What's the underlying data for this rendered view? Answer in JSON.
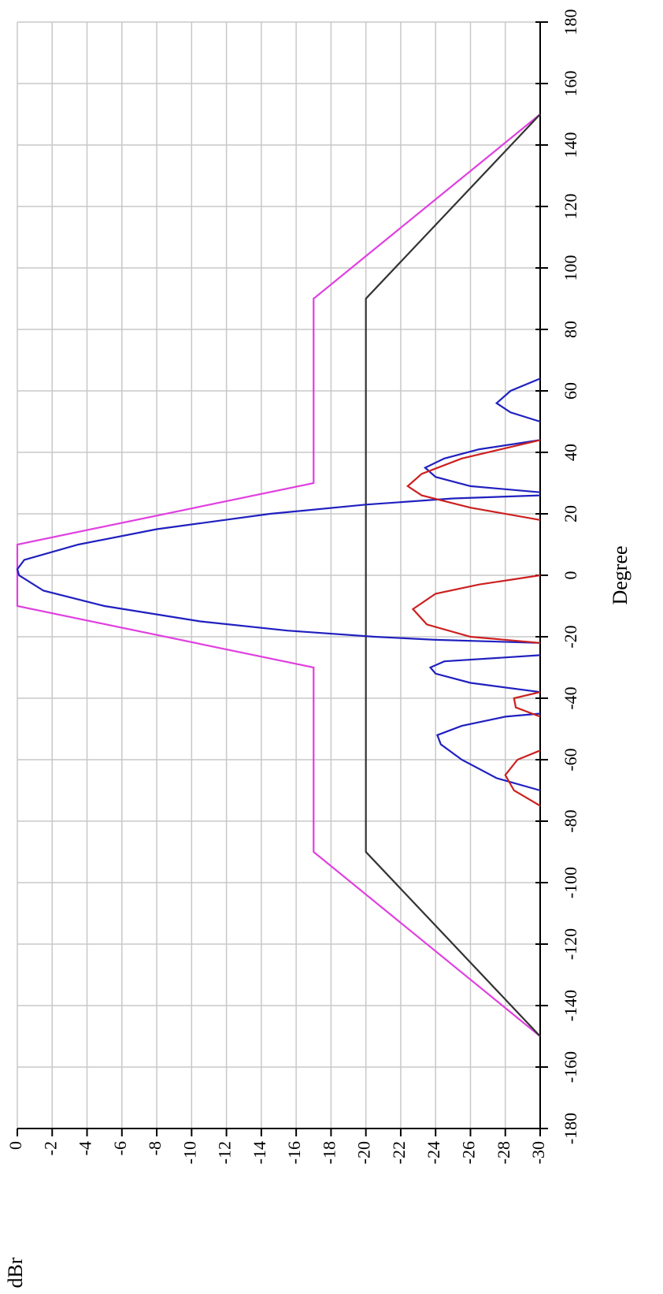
{
  "chart_data": {
    "type": "line",
    "x_label": "Degree",
    "y_label": "dBr",
    "xlim": [
      -180,
      180
    ],
    "xticks": [
      -180,
      -160,
      -140,
      -120,
      -100,
      -80,
      -60,
      -40,
      -20,
      0,
      20,
      40,
      60,
      80,
      100,
      120,
      140,
      160,
      180
    ],
    "ylim": [
      -30,
      0
    ],
    "yticks": [
      0,
      -2,
      -4,
      -6,
      -8,
      -10,
      -12,
      -14,
      -16,
      -18,
      -20,
      -22,
      -24,
      -26,
      -28,
      -30
    ],
    "grid": true,
    "series": [
      {
        "color": "#e040e0",
        "x": [
          -150,
          -90,
          -30,
          -10,
          10,
          30,
          90,
          150
        ],
        "values": [
          -30,
          -17,
          -17,
          0,
          0,
          -17,
          -17,
          -30
        ]
      },
      {
        "color": "#333333",
        "x": [
          -150,
          -90,
          90,
          150
        ],
        "values": [
          -30,
          -20,
          -20,
          -30
        ]
      },
      {
        "color": "#2020c0",
        "x": [
          -70,
          -66,
          -60,
          -55,
          -52,
          -49,
          -46,
          -45,
          null,
          -38,
          -35,
          -32,
          -30,
          -28,
          -26,
          null,
          -22,
          -21,
          -20,
          -18,
          -15,
          -10,
          -5,
          0,
          2,
          5,
          10,
          15,
          20,
          23,
          25,
          26,
          null,
          27,
          29,
          32,
          35,
          38,
          41,
          44,
          null,
          50,
          53,
          56,
          60,
          64
        ],
        "values": [
          -30,
          -27.5,
          -25.5,
          -24.3,
          -24.1,
          -25.5,
          -28,
          -30,
          null,
          -30,
          -26,
          -24,
          -23.7,
          -24.5,
          -30,
          null,
          -30,
          -24,
          -20.5,
          -15.5,
          -10.5,
          -5,
          -1.5,
          -0.1,
          0,
          -0.4,
          -3.5,
          -8,
          -14.5,
          -20,
          -25,
          -30,
          null,
          -30,
          -26,
          -24,
          -23.4,
          -24.5,
          -26.5,
          -30,
          null,
          -30,
          -28.3,
          -27.5,
          -28.3,
          -30
        ]
      },
      {
        "color": "#cc2020",
        "x": [
          -75,
          -70,
          -65,
          -60,
          -57,
          null,
          -46,
          -43,
          -40,
          -38,
          null,
          -22,
          -20,
          -16,
          -11,
          -6,
          -3,
          0,
          null,
          18,
          22,
          26,
          29,
          33,
          38,
          44
        ],
        "values": [
          -30,
          -28.5,
          -28,
          -28.7,
          -30,
          null,
          -30,
          -28.6,
          -28.5,
          -30,
          null,
          -30,
          -26,
          -23.5,
          -22.7,
          -24,
          -26.5,
          -30,
          null,
          -30,
          -26,
          -23.2,
          -22.4,
          -23.2,
          -25.5,
          -30
        ]
      }
    ]
  }
}
